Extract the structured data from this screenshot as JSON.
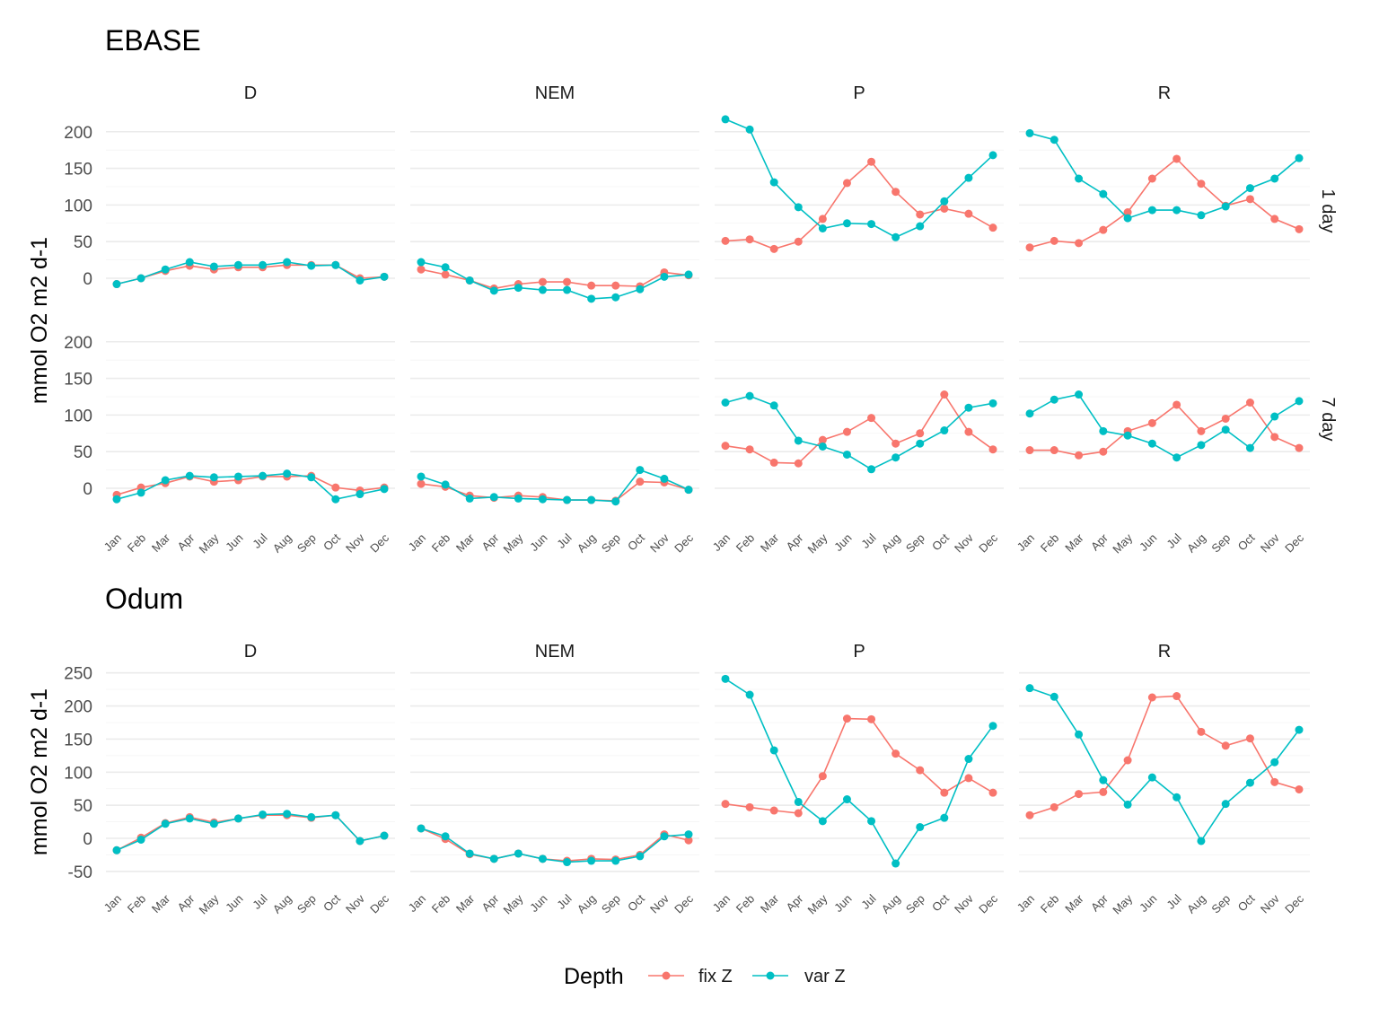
{
  "colors": {
    "fix Z": "#F8766D",
    "var Z": "#00BFC4",
    "grid": "#EBEBEB"
  },
  "legend": {
    "title": "Depth",
    "items": [
      "fix Z",
      "var Z"
    ]
  },
  "chart_data": [
    {
      "type": "line",
      "title": "EBASE",
      "ylabel": "mmol O2 m2 d-1",
      "categories": [
        "Jan",
        "Feb",
        "Mar",
        "Apr",
        "May",
        "Jun",
        "Jul",
        "Aug",
        "Sep",
        "Oct",
        "Nov",
        "Dec"
      ],
      "columns": [
        "D",
        "NEM",
        "P",
        "R"
      ],
      "rows": [
        "1 day",
        "7 day"
      ],
      "yticks": [
        0,
        50,
        100,
        150,
        200
      ],
      "ylim": [
        -50,
        240
      ],
      "panels": [
        {
          "row": "1 day",
          "col": "D",
          "series": [
            {
              "name": "fix Z",
              "values": [
                -8,
                0,
                10,
                17,
                12,
                15,
                15,
                18,
                18,
                18,
                0,
                2
              ]
            },
            {
              "name": "var Z",
              "values": [
                -8,
                0,
                12,
                22,
                16,
                18,
                18,
                22,
                17,
                18,
                -3,
                2
              ]
            }
          ]
        },
        {
          "row": "1 day",
          "col": "NEM",
          "series": [
            {
              "name": "fix Z",
              "values": [
                12,
                5,
                -3,
                -14,
                -8,
                -5,
                -5,
                -10,
                -10,
                -11,
                8,
                4
              ]
            },
            {
              "name": "var Z",
              "values": [
                22,
                15,
                -3,
                -17,
                -13,
                -16,
                -16,
                -28,
                -26,
                -15,
                2,
                5
              ]
            }
          ]
        },
        {
          "row": "1 day",
          "col": "P",
          "series": [
            {
              "name": "fix Z",
              "values": [
                51,
                53,
                40,
                50,
                81,
                130,
                159,
                118,
                87,
                95,
                88,
                69
              ]
            },
            {
              "name": "var Z",
              "values": [
                217,
                203,
                131,
                97,
                68,
                75,
                74,
                56,
                71,
                105,
                137,
                168
              ]
            }
          ]
        },
        {
          "row": "1 day",
          "col": "R",
          "series": [
            {
              "name": "fix Z",
              "values": [
                42,
                51,
                48,
                66,
                90,
                136,
                163,
                129,
                99,
                108,
                81,
                67
              ]
            },
            {
              "name": "var Z",
              "values": [
                198,
                189,
                136,
                115,
                82,
                93,
                93,
                86,
                98,
                123,
                136,
                164
              ]
            }
          ]
        },
        {
          "row": "7 day",
          "col": "D",
          "series": [
            {
              "name": "fix Z",
              "values": [
                -9,
                1,
                7,
                16,
                9,
                11,
                16,
                16,
                17,
                1,
                -3,
                1
              ]
            },
            {
              "name": "var Z",
              "values": [
                -15,
                -6,
                11,
                17,
                15,
                16,
                17,
                20,
                15,
                -15,
                -8,
                -1
              ]
            }
          ]
        },
        {
          "row": "7 day",
          "col": "NEM",
          "series": [
            {
              "name": "fix Z",
              "values": [
                6,
                2,
                -10,
                -13,
                -10,
                -12,
                -16,
                -16,
                -17,
                9,
                8,
                -2
              ]
            },
            {
              "name": "var Z",
              "values": [
                16,
                5,
                -14,
                -12,
                -14,
                -15,
                -16,
                -16,
                -18,
                25,
                13,
                -2
              ]
            }
          ]
        },
        {
          "row": "7 day",
          "col": "P",
          "series": [
            {
              "name": "fix Z",
              "values": [
                58,
                53,
                35,
                34,
                66,
                77,
                96,
                61,
                75,
                128,
                77,
                53
              ]
            },
            {
              "name": "var Z",
              "values": [
                117,
                126,
                113,
                65,
                57,
                46,
                26,
                42,
                61,
                79,
                110,
                116
              ]
            }
          ]
        },
        {
          "row": "7 day",
          "col": "R",
          "series": [
            {
              "name": "fix Z",
              "values": [
                52,
                52,
                45,
                50,
                78,
                89,
                114,
                78,
                95,
                117,
                70,
                55
              ]
            },
            {
              "name": "var Z",
              "values": [
                102,
                121,
                128,
                78,
                72,
                61,
                42,
                59,
                80,
                55,
                98,
                119
              ]
            }
          ]
        }
      ]
    },
    {
      "type": "line",
      "title": "Odum",
      "ylabel": "mmol O2 m2 d-1",
      "categories": [
        "Jan",
        "Feb",
        "Mar",
        "Apr",
        "May",
        "Jun",
        "Jul",
        "Aug",
        "Sep",
        "Oct",
        "Nov",
        "Dec"
      ],
      "columns": [
        "D",
        "NEM",
        "P",
        "R"
      ],
      "rows": [],
      "yticks": [
        -50,
        0,
        50,
        100,
        150,
        200,
        250
      ],
      "ylim": [
        -52,
        252
      ],
      "panels": [
        {
          "col": "D",
          "series": [
            {
              "name": "fix Z",
              "values": [
                -18,
                1,
                23,
                32,
                24,
                30,
                35,
                35,
                31,
                35,
                -4,
                4
              ]
            },
            {
              "name": "var Z",
              "values": [
                -18,
                -2,
                22,
                30,
                22,
                30,
                36,
                37,
                32,
                35,
                -4,
                4
              ]
            }
          ]
        },
        {
          "col": "NEM",
          "series": [
            {
              "name": "fix Z",
              "values": [
                15,
                -1,
                -24,
                -31,
                -23,
                -31,
                -34,
                -31,
                -32,
                -25,
                6,
                -3
              ]
            },
            {
              "name": "var Z",
              "values": [
                15,
                3,
                -23,
                -31,
                -23,
                -31,
                -36,
                -34,
                -34,
                -27,
                3,
                6
              ]
            }
          ]
        },
        {
          "col": "P",
          "series": [
            {
              "name": "fix Z",
              "values": [
                52,
                47,
                42,
                38,
                94,
                181,
                180,
                128,
                103,
                69,
                91,
                69
              ]
            },
            {
              "name": "var Z",
              "values": [
                241,
                217,
                133,
                55,
                26,
                59,
                26,
                -38,
                17,
                31,
                120,
                170
              ]
            }
          ]
        },
        {
          "col": "R",
          "series": [
            {
              "name": "fix Z",
              "values": [
                35,
                47,
                67,
                70,
                118,
                213,
                215,
                161,
                140,
                151,
                85,
                74
              ]
            },
            {
              "name": "var Z",
              "values": [
                227,
                214,
                157,
                88,
                51,
                92,
                62,
                -4,
                52,
                84,
                115,
                164
              ]
            }
          ]
        }
      ]
    }
  ]
}
